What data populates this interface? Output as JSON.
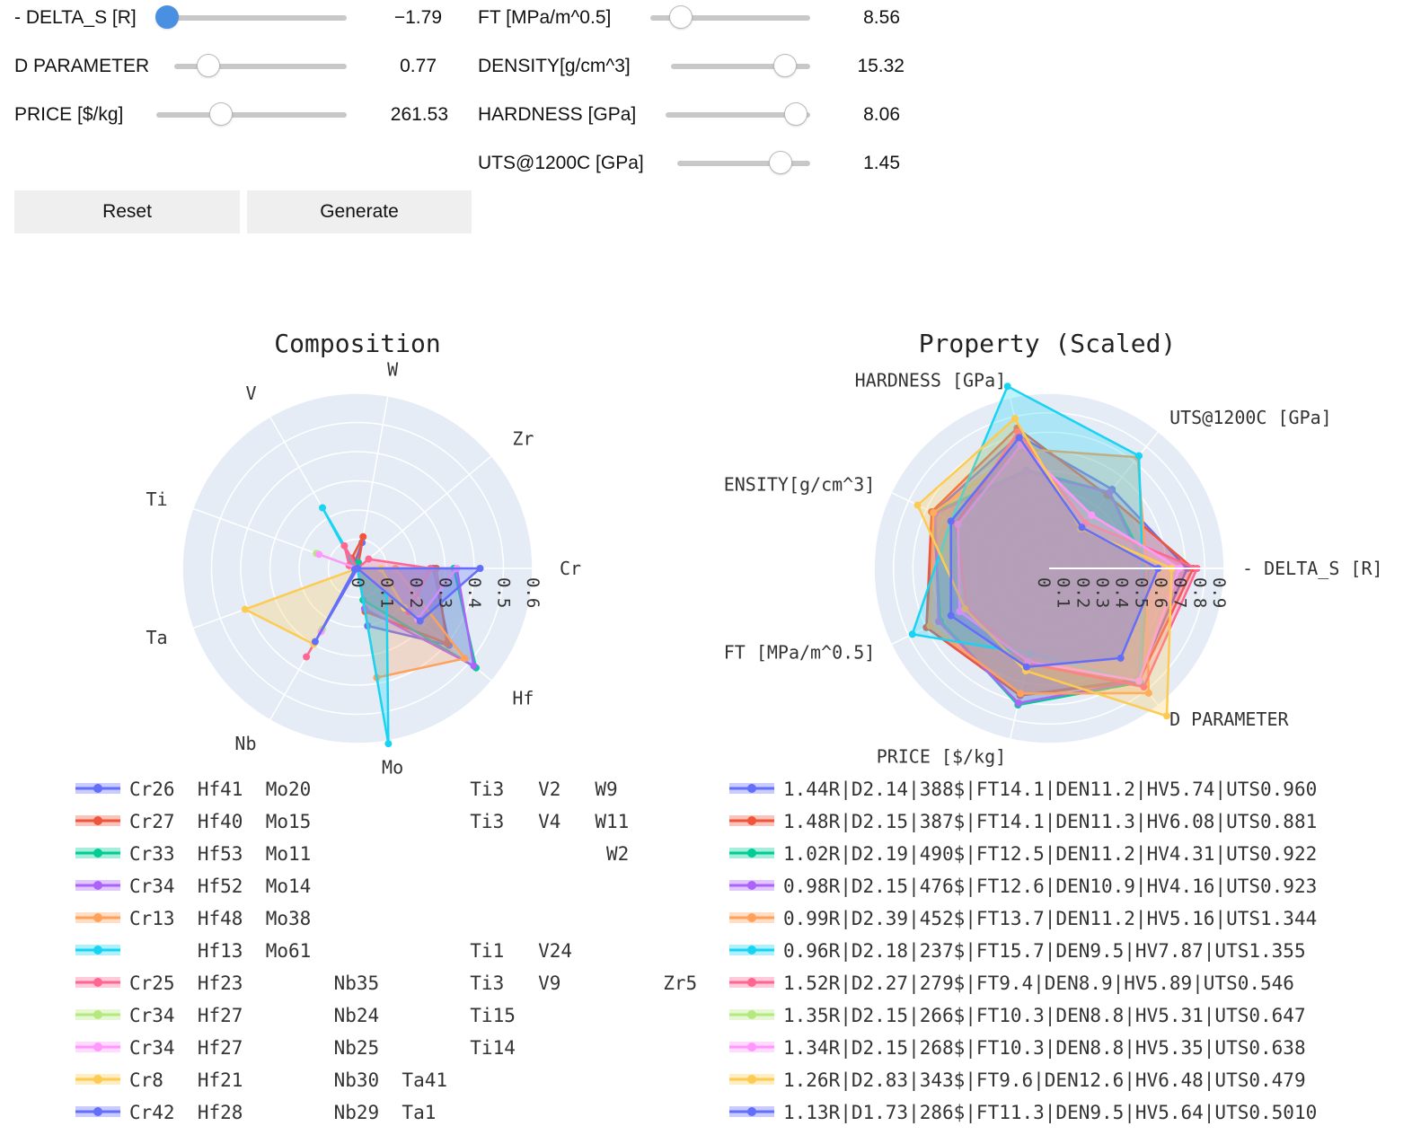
{
  "controls": {
    "sliders": [
      {
        "id": "delta_s",
        "label": "- DELTA_S [R]",
        "value": "−1.79",
        "pos": 0.0,
        "active": true
      },
      {
        "id": "d_param",
        "label": "D PARAMETER",
        "value": "0.77",
        "pos": 0.2,
        "active": false
      },
      {
        "id": "price",
        "label": "PRICE [$/kg]",
        "value": "261.53",
        "pos": 0.34,
        "active": false
      },
      {
        "id": "ft",
        "label": "FT [MPa/m^0.5]",
        "value": "8.56",
        "pos": 0.19,
        "active": false
      },
      {
        "id": "density",
        "label": "DENSITY[g/cm^3]",
        "value": "15.32",
        "pos": 0.82,
        "active": false
      },
      {
        "id": "hardness",
        "label": "HARDNESS [GPa]",
        "value": "8.06",
        "pos": 0.9,
        "active": false
      },
      {
        "id": "uts",
        "label": "UTS@1200C [GPa]",
        "value": "1.45",
        "pos": 0.78,
        "active": false
      }
    ],
    "reset_label": "Reset",
    "generate_label": "Generate"
  },
  "chart_data": [
    {
      "type": "radar",
      "title": "Composition",
      "axes": [
        "Cr",
        "Hf",
        "Mo",
        "Nb",
        "Ta",
        "Ti",
        "V",
        "W",
        "Zr"
      ],
      "radial_range": [
        0,
        0.6
      ],
      "radial_ticks": [
        "0",
        "0.1",
        "0.2",
        "0.3",
        "0.4",
        "0.5",
        "0.6"
      ],
      "grid": true,
      "legend": "below",
      "series": [
        {
          "name": "Cr26  Hf41  Mo20              Ti3   V2   W9",
          "color": "#636efa",
          "values": [
            0.26,
            0.41,
            0.2,
            0,
            0,
            0.03,
            0.02,
            0.09,
            0
          ]
        },
        {
          "name": "Cr27  Hf40  Mo15              Ti3   V4   W11",
          "color": "#ef553b",
          "values": [
            0.27,
            0.4,
            0.15,
            0,
            0,
            0.03,
            0.04,
            0.11,
            0
          ]
        },
        {
          "name": "Cr33  Hf53  Mo11                          W2",
          "color": "#00cc96",
          "values": [
            0.33,
            0.53,
            0.11,
            0,
            0,
            0,
            0,
            0.02,
            0
          ]
        },
        {
          "name": "Cr34  Hf52  Mo14",
          "color": "#ab63fa",
          "values": [
            0.34,
            0.52,
            0.14,
            0,
            0,
            0,
            0,
            0,
            0
          ]
        },
        {
          "name": "Cr13  Hf48  Mo38",
          "color": "#ffa15a",
          "values": [
            0.13,
            0.48,
            0.38,
            0,
            0,
            0,
            0,
            0,
            0
          ]
        },
        {
          "name": "      Hf13  Mo61              Ti1   V24",
          "color": "#19d3f3",
          "values": [
            0,
            0.13,
            0.61,
            0,
            0,
            0.01,
            0.24,
            0,
            0
          ]
        },
        {
          "name": "Cr25  Hf23        Nb35        Ti3   V9         Zr5",
          "color": "#ff6692",
          "values": [
            0.25,
            0.23,
            0,
            0.35,
            0,
            0.03,
            0.09,
            0,
            0.05
          ]
        },
        {
          "name": "Cr34  Hf27        Nb24        Ti15",
          "color": "#b6e880",
          "values": [
            0.34,
            0.27,
            0,
            0.24,
            0,
            0.15,
            0,
            0,
            0
          ]
        },
        {
          "name": "Cr34  Hf27        Nb25        Ti14",
          "color": "#ff97ff",
          "values": [
            0.34,
            0.27,
            0,
            0.25,
            0,
            0.14,
            0,
            0,
            0
          ]
        },
        {
          "name": "Cr8   Hf21        Nb30  Ta41",
          "color": "#fecb52",
          "values": [
            0.08,
            0.21,
            0,
            0.3,
            0.41,
            0,
            0,
            0,
            0
          ]
        },
        {
          "name": "Cr42  Hf28        Nb29  Ta1",
          "color": "#636efa",
          "values": [
            0.42,
            0.28,
            0,
            0.29,
            0.01,
            0,
            0,
            0,
            0
          ]
        }
      ]
    },
    {
      "type": "radar",
      "title": "Property (Scaled)",
      "axes": [
        "- DELTA_S [R]",
        "D PARAMETER",
        "PRICE [$/kg]",
        "FT [MPa/m^0.5]",
        "ENSITY[g/cm^3]",
        "HARDNESS [GPa]",
        "UTS@1200C [GPa]"
      ],
      "radial_range": [
        0,
        0.9
      ],
      "radial_ticks": [
        "0",
        "0.1",
        "0.2",
        "0.3",
        "0.4",
        "0.5",
        "0.6",
        "0.7",
        "0.8",
        "0.9"
      ],
      "grid": true,
      "legend": "below",
      "series": [
        {
          "name": "1.44R|D2.14|388$|FT14.1|DEN11.2|HV5.74|UTS0.960",
          "color": "#636efa",
          "values": [
            0.71,
            0.73,
            0.67,
            0.7,
            0.66,
            0.7,
            0.52
          ]
        },
        {
          "name": "1.48R|D2.15|387$|FT14.1|DEN11.3|HV6.08|UTS0.881",
          "color": "#ef553b",
          "values": [
            0.74,
            0.74,
            0.67,
            0.7,
            0.67,
            0.74,
            0.48
          ]
        },
        {
          "name": "1.02R|D2.19|490$|FT12.5|DEN11.2|HV4.31|UTS0.922",
          "color": "#00cc96",
          "values": [
            0.51,
            0.75,
            0.72,
            0.62,
            0.66,
            0.52,
            0.5
          ]
        },
        {
          "name": "0.98R|D2.15|476$|FT12.6|DEN10.9|HV4.16|UTS0.923",
          "color": "#ab63fa",
          "values": [
            0.49,
            0.74,
            0.71,
            0.63,
            0.65,
            0.51,
            0.5
          ]
        },
        {
          "name": "0.99R|D2.39|452$|FT13.7|DEN11.2|HV5.16|UTS1.344",
          "color": "#ffa15a",
          "values": [
            0.5,
            0.82,
            0.66,
            0.68,
            0.66,
            0.63,
            0.73
          ]
        },
        {
          "name": "0.96R|D2.18|237$|FT15.7|DEN9.5|HV7.87|UTS1.355",
          "color": "#19d3f3",
          "values": [
            0.48,
            0.75,
            0.45,
            0.78,
            0.56,
            0.96,
            0.74
          ]
        },
        {
          "name": "1.52R|D2.27|279$|FT9.4|DEN8.9|HV5.89|UTS0.546",
          "color": "#ff6692",
          "values": [
            0.76,
            0.78,
            0.5,
            0.47,
            0.53,
            0.72,
            0.3
          ]
        },
        {
          "name": "1.35R|D2.15|266$|FT10.3|DEN8.8|HV5.31|UTS0.647",
          "color": "#b6e880",
          "values": [
            0.67,
            0.74,
            0.49,
            0.51,
            0.52,
            0.65,
            0.35
          ]
        },
        {
          "name": "1.34R|D2.15|268$|FT10.3|DEN8.8|HV5.35|UTS0.638",
          "color": "#ff97ff",
          "values": [
            0.67,
            0.74,
            0.49,
            0.51,
            0.52,
            0.65,
            0.35
          ]
        },
        {
          "name": "1.26R|D2.83|343$|FT9.6|DEN12.6|HV6.48|UTS0.479",
          "color": "#fecb52",
          "values": [
            0.63,
            0.97,
            0.54,
            0.48,
            0.75,
            0.79,
            0.26
          ]
        },
        {
          "name": "1.13R|D1.73|286$|FT11.3|DEN9.5|HV5.64|UTS0.5010",
          "color": "#636efa",
          "values": [
            0.56,
            0.59,
            0.52,
            0.56,
            0.56,
            0.69,
            0.27
          ]
        }
      ]
    }
  ]
}
